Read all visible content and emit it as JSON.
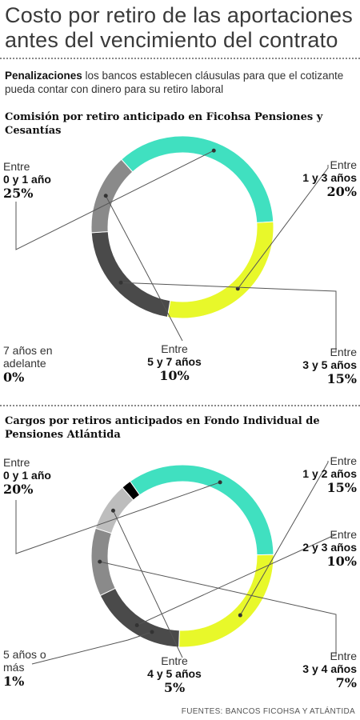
{
  "header": {
    "title": "Costo por retiro de las aportaciones antes del vencimiento del contrato",
    "intro_bold": "Penalizaciones",
    "intro_text": " los bancos establecen cláusulas para que el cotizante pueda contar con dinero para su retiro laboral"
  },
  "source": "FUENTES: BANCOS FICOHSA Y ATLÁNTIDA",
  "chart_data": [
    {
      "type": "pie",
      "title": "Comisión por retiro anticipado en Ficohsa Pensiones y Cesantías",
      "unit": "%",
      "slices": [
        {
          "prefix": "Entre",
          "range": "0 y 1 año",
          "value": 25,
          "pct": "25%",
          "color": "#40e0c0"
        },
        {
          "prefix": "Entre",
          "range": "1 y 3 años",
          "value": 20,
          "pct": "20%",
          "color": "#e8f82a"
        },
        {
          "prefix": "Entre",
          "range": "3 y 5 años",
          "value": 15,
          "pct": "15%",
          "color": "#4a4a4a"
        },
        {
          "prefix": "Entre",
          "range": "5 y 7 años",
          "value": 10,
          "pct": "10%",
          "color": "#8a8a8a"
        },
        {
          "prefix": "",
          "range": "7 años en adelante",
          "value": 0,
          "pct": "0%",
          "color": "#000000"
        }
      ]
    },
    {
      "type": "pie",
      "title": "Cargos por retiros anticipados en Fondo Individual de Pensiones Atlántida",
      "unit": "%",
      "slices": [
        {
          "prefix": "Entre",
          "range": "0 y 1 año",
          "value": 20,
          "pct": "20%",
          "color": "#40e0c0"
        },
        {
          "prefix": "Entre",
          "range": "1 y 2 años",
          "value": 15,
          "pct": "15%",
          "color": "#e8f82a"
        },
        {
          "prefix": "Entre",
          "range": "2 y 3 años",
          "value": 10,
          "pct": "10%",
          "color": "#4a4a4a"
        },
        {
          "prefix": "Entre",
          "range": "3 y 4 años",
          "value": 7,
          "pct": "7%",
          "color": "#8a8a8a"
        },
        {
          "prefix": "Entre",
          "range": "4 y 5 años",
          "value": 5,
          "pct": "5%",
          "color": "#bdbdbd"
        },
        {
          "prefix": "",
          "range": "5 años o más",
          "value": 1,
          "pct": "1%",
          "color": "#000000"
        }
      ]
    }
  ]
}
